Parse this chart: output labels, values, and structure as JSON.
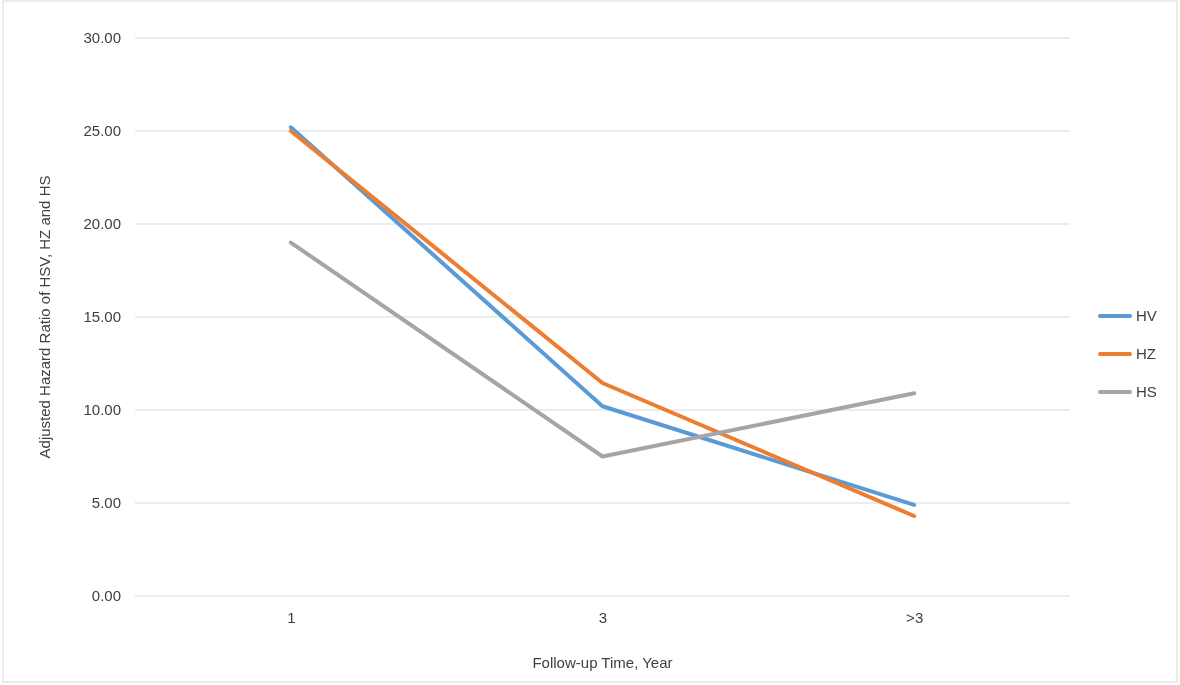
{
  "chart_data": {
    "type": "line",
    "xlabel": "Follow-up Time, Year",
    "ylabel": "Adjusted Hazard Ratio of HSV, HZ and HS",
    "categories": [
      "1",
      "3",
      ">3"
    ],
    "series": [
      {
        "name": "HV",
        "color": "#5b9bd5",
        "values": [
          25.2,
          10.2,
          4.9
        ]
      },
      {
        "name": "HZ",
        "color": "#ed7d31",
        "values": [
          25.0,
          11.45,
          4.3
        ]
      },
      {
        "name": "HS",
        "color": "#a5a5a5",
        "values": [
          19.0,
          7.5,
          10.9
        ]
      }
    ],
    "ylim": [
      0,
      30
    ],
    "yticks": [
      {
        "value": 0,
        "label": "0.00"
      },
      {
        "value": 5,
        "label": "5.00"
      },
      {
        "value": 10,
        "label": "10.00"
      },
      {
        "value": 15,
        "label": "15.00"
      },
      {
        "value": 20,
        "label": "20.00"
      },
      {
        "value": 25,
        "label": "25.00"
      },
      {
        "value": 30,
        "label": "30.00"
      }
    ],
    "grid": "y",
    "legend": "right",
    "marker": "none",
    "line_style": "solid"
  }
}
